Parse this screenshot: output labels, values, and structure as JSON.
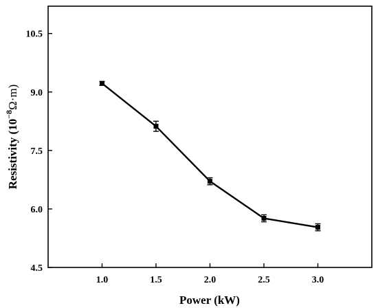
{
  "chart_data": {
    "type": "line",
    "title": "",
    "xlabel": "Power (kW)",
    "ylabel_main": "Resistivity (10",
    "ylabel_exp": "−8",
    "ylabel_unit": "Ω·m)",
    "xlim": [
      0.5,
      3.5
    ],
    "ylim": [
      4.5,
      11.2
    ],
    "x_ticks": [
      "1.0",
      "1.5",
      "2.0",
      "2.5",
      "3.0"
    ],
    "x_tick_values": [
      1.0,
      1.5,
      2.0,
      2.5,
      3.0
    ],
    "y_ticks": [
      "4.5",
      "6.0",
      "7.5",
      "9.0",
      "10.5"
    ],
    "y_tick_values": [
      4.5,
      6.0,
      7.5,
      9.0,
      10.5
    ],
    "grid": false,
    "legend": "none",
    "series": [
      {
        "x": [
          1.0,
          1.5,
          2.0,
          2.5,
          3.0
        ],
        "y": [
          9.22,
          8.12,
          6.71,
          5.76,
          5.53
        ],
        "error": [
          0.05,
          0.13,
          0.09,
          0.09,
          0.09
        ],
        "marker": "square",
        "color": "#000000"
      }
    ]
  }
}
